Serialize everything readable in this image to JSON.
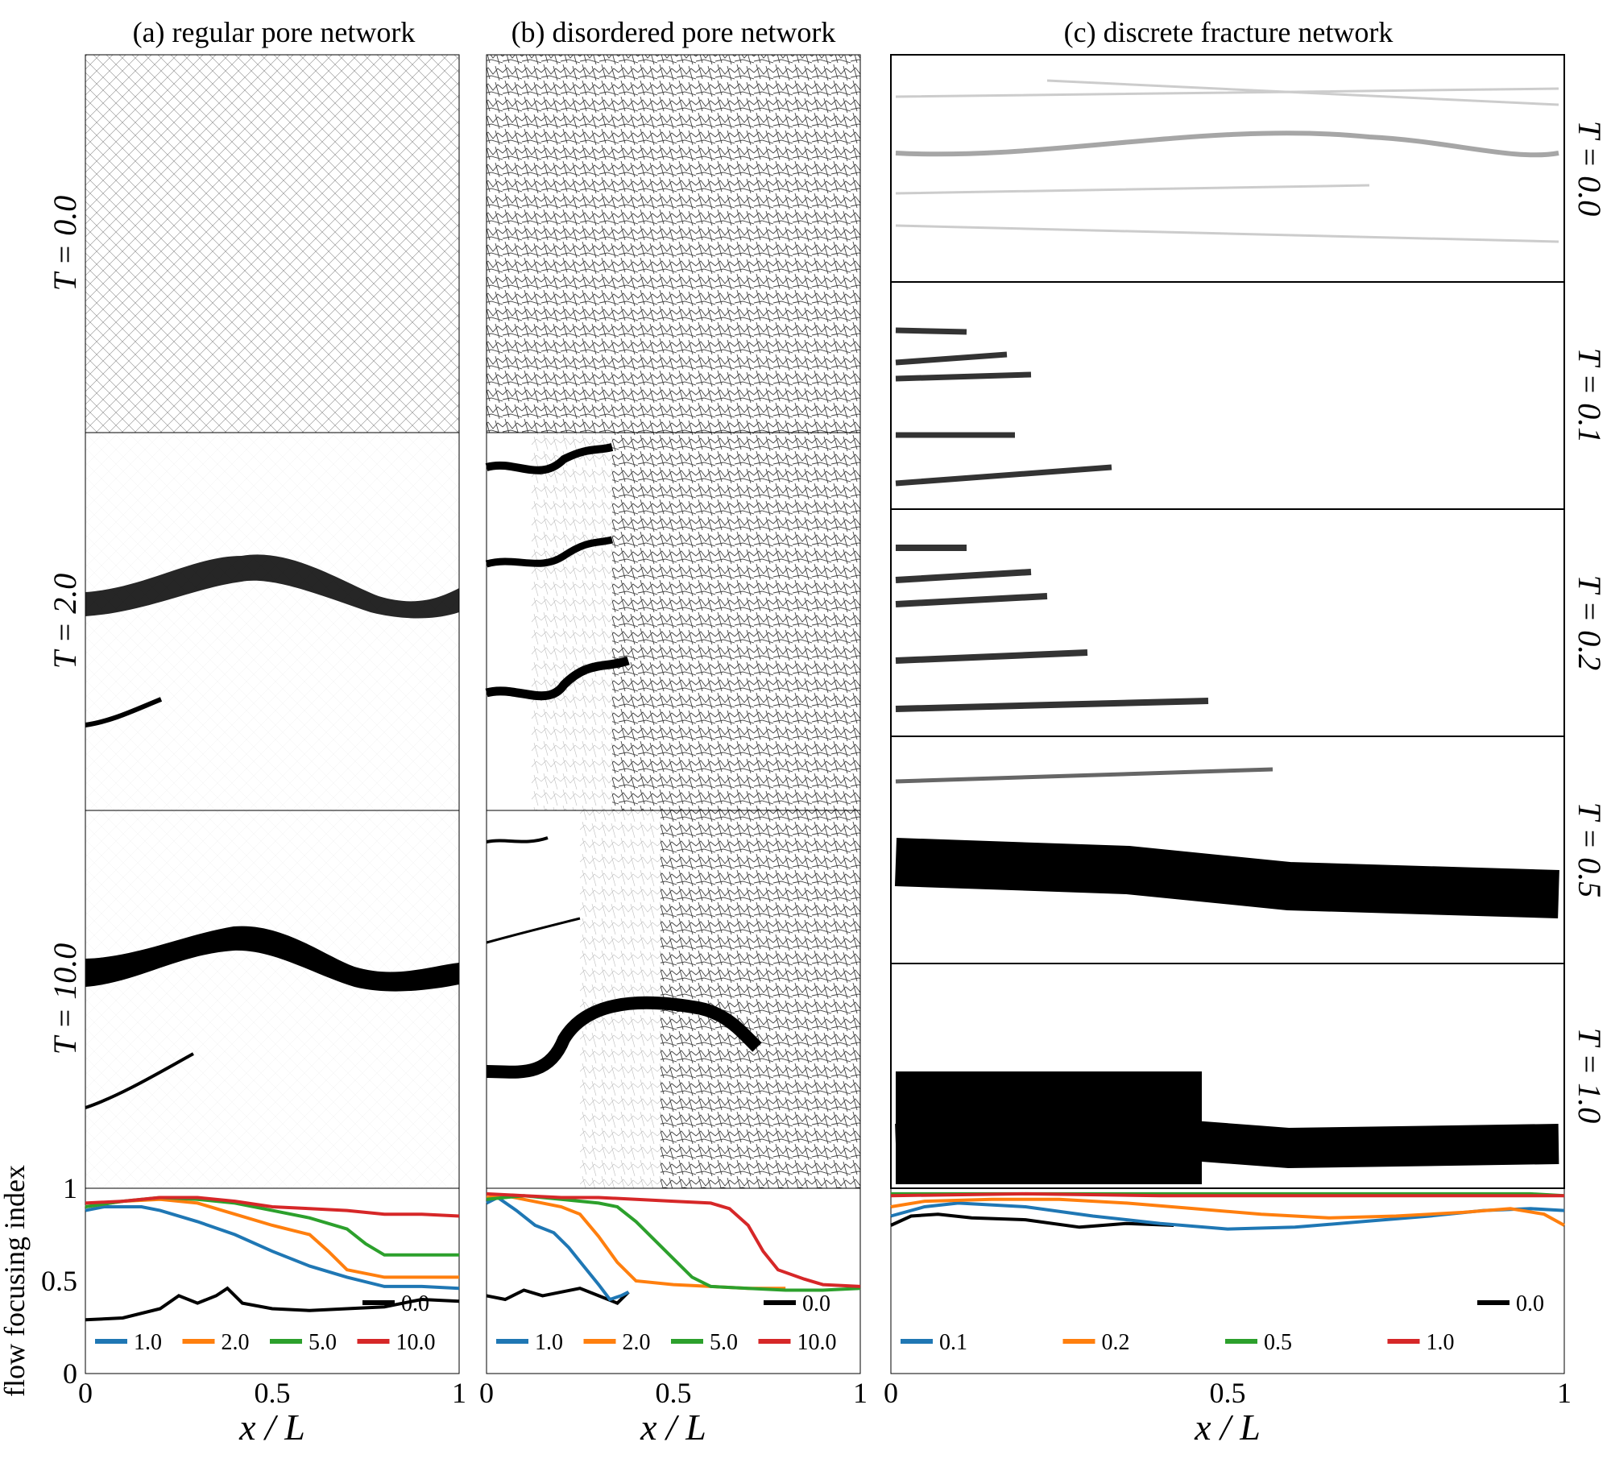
{
  "columns": [
    {
      "title": "(a) regular pore network"
    },
    {
      "title": "(b) disordered pore network"
    },
    {
      "title": "(c) discrete fracture network"
    }
  ],
  "row_labels_ab": [
    "T = 0.0",
    "T = 2.0",
    "T = 10.0"
  ],
  "row_labels_c": [
    "T = 0.0",
    "T = 0.1",
    "T = 0.2",
    "T = 0.5",
    "T = 1.0"
  ],
  "colors": {
    "c0": "#000000",
    "c1": "#1f77b4",
    "c2": "#ff7f0e",
    "c3": "#2ca02c",
    "c4": "#d62728"
  },
  "chart_data": [
    {
      "type": "line",
      "panel": "a",
      "xlabel": "x / L",
      "ylabel": "flow focusing index",
      "xlim": [
        0,
        1
      ],
      "ylim": [
        0,
        1
      ],
      "xticks": [
        "0",
        "0.5",
        "1"
      ],
      "yticks": [
        "0",
        "0.5",
        "1"
      ],
      "series": [
        {
          "name": "0.0",
          "x": [
            0,
            0.1,
            0.2,
            0.25,
            0.3,
            0.35,
            0.38,
            0.42,
            0.5,
            0.6,
            0.7,
            0.8,
            0.9,
            1.0
          ],
          "y": [
            0.29,
            0.3,
            0.35,
            0.42,
            0.38,
            0.42,
            0.46,
            0.38,
            0.35,
            0.34,
            0.35,
            0.36,
            0.4,
            0.39
          ]
        },
        {
          "name": "1.0",
          "x": [
            0,
            0.05,
            0.15,
            0.2,
            0.3,
            0.4,
            0.5,
            0.6,
            0.7,
            0.8,
            0.9,
            1.0
          ],
          "y": [
            0.88,
            0.9,
            0.9,
            0.88,
            0.82,
            0.75,
            0.66,
            0.58,
            0.52,
            0.47,
            0.47,
            0.46
          ]
        },
        {
          "name": "2.0",
          "x": [
            0,
            0.1,
            0.2,
            0.3,
            0.4,
            0.5,
            0.6,
            0.65,
            0.7,
            0.8,
            0.9,
            1.0
          ],
          "y": [
            0.9,
            0.93,
            0.94,
            0.92,
            0.86,
            0.8,
            0.75,
            0.66,
            0.56,
            0.52,
            0.52,
            0.52
          ]
        },
        {
          "name": "5.0",
          "x": [
            0,
            0.1,
            0.2,
            0.3,
            0.4,
            0.5,
            0.6,
            0.7,
            0.75,
            0.8,
            0.9,
            1.0
          ],
          "y": [
            0.9,
            0.93,
            0.95,
            0.94,
            0.92,
            0.88,
            0.84,
            0.78,
            0.7,
            0.64,
            0.64,
            0.64
          ]
        },
        {
          "name": "10.0",
          "x": [
            0,
            0.1,
            0.2,
            0.3,
            0.4,
            0.5,
            0.6,
            0.7,
            0.8,
            0.9,
            1.0
          ],
          "y": [
            0.92,
            0.93,
            0.95,
            0.95,
            0.93,
            0.9,
            0.89,
            0.88,
            0.86,
            0.86,
            0.85
          ]
        }
      ]
    },
    {
      "type": "line",
      "panel": "b",
      "xlabel": "x / L",
      "xlim": [
        0,
        1
      ],
      "ylim": [
        0,
        1
      ],
      "xticks": [
        "0",
        "0.5",
        "1"
      ],
      "series": [
        {
          "name": "0.0",
          "x": [
            0,
            0.05,
            0.1,
            0.15,
            0.2,
            0.25,
            0.3,
            0.35,
            0.38
          ],
          "y": [
            0.42,
            0.4,
            0.45,
            0.42,
            0.44,
            0.46,
            0.42,
            0.38,
            0.44
          ]
        },
        {
          "name": "1.0",
          "x": [
            0,
            0.03,
            0.08,
            0.13,
            0.18,
            0.22,
            0.26,
            0.3,
            0.33,
            0.36,
            0.38
          ],
          "y": [
            0.92,
            0.95,
            0.88,
            0.8,
            0.76,
            0.68,
            0.58,
            0.48,
            0.4,
            0.42,
            0.44
          ]
        },
        {
          "name": "2.0",
          "x": [
            0,
            0.05,
            0.1,
            0.15,
            0.2,
            0.25,
            0.3,
            0.35,
            0.4,
            0.5,
            0.6,
            0.7,
            0.8
          ],
          "y": [
            0.95,
            0.96,
            0.94,
            0.92,
            0.9,
            0.86,
            0.74,
            0.6,
            0.5,
            0.48,
            0.47,
            0.46,
            0.46
          ]
        },
        {
          "name": "5.0",
          "x": [
            0,
            0.1,
            0.2,
            0.3,
            0.35,
            0.4,
            0.45,
            0.5,
            0.55,
            0.6,
            0.7,
            0.8,
            0.9,
            1.0
          ],
          "y": [
            0.94,
            0.96,
            0.94,
            0.92,
            0.9,
            0.82,
            0.72,
            0.62,
            0.52,
            0.47,
            0.46,
            0.45,
            0.45,
            0.46
          ]
        },
        {
          "name": "10.0",
          "x": [
            0,
            0.1,
            0.2,
            0.3,
            0.4,
            0.5,
            0.6,
            0.65,
            0.7,
            0.74,
            0.78,
            0.85,
            0.9,
            1.0
          ],
          "y": [
            0.97,
            0.96,
            0.95,
            0.95,
            0.94,
            0.93,
            0.92,
            0.89,
            0.8,
            0.66,
            0.56,
            0.51,
            0.48,
            0.47
          ]
        }
      ]
    },
    {
      "type": "line",
      "panel": "c",
      "xlabel": "x / L",
      "xlim": [
        0,
        1
      ],
      "ylim": [
        0,
        1
      ],
      "xticks": [
        "0",
        "0.5",
        "1"
      ],
      "series": [
        {
          "name": "0.0",
          "x": [
            0,
            0.03,
            0.07,
            0.12,
            0.2,
            0.28,
            0.35,
            0.42
          ],
          "y": [
            0.8,
            0.85,
            0.86,
            0.84,
            0.83,
            0.79,
            0.81,
            0.8
          ]
        },
        {
          "name": "0.1",
          "x": [
            0,
            0.05,
            0.1,
            0.2,
            0.3,
            0.4,
            0.5,
            0.6,
            0.7,
            0.8,
            0.88,
            0.95,
            1.0
          ],
          "y": [
            0.85,
            0.9,
            0.92,
            0.9,
            0.85,
            0.81,
            0.78,
            0.79,
            0.82,
            0.85,
            0.88,
            0.89,
            0.88
          ]
        },
        {
          "name": "0.2",
          "x": [
            0,
            0.05,
            0.15,
            0.25,
            0.35,
            0.45,
            0.55,
            0.65,
            0.75,
            0.85,
            0.92,
            0.97,
            1.0
          ],
          "y": [
            0.9,
            0.93,
            0.94,
            0.94,
            0.92,
            0.89,
            0.86,
            0.84,
            0.85,
            0.87,
            0.89,
            0.86,
            0.8
          ]
        },
        {
          "name": "0.5",
          "x": [
            0,
            0.2,
            0.4,
            0.6,
            0.8,
            0.95,
            1.0
          ],
          "y": [
            0.97,
            0.97,
            0.97,
            0.97,
            0.97,
            0.97,
            0.96
          ]
        },
        {
          "name": "1.0",
          "x": [
            0,
            0.2,
            0.4,
            0.6,
            0.8,
            1.0
          ],
          "y": [
            0.96,
            0.97,
            0.96,
            0.96,
            0.96,
            0.96
          ]
        }
      ]
    }
  ],
  "legend_ab": [
    "0.0",
    "1.0",
    "2.0",
    "5.0",
    "10.0"
  ],
  "legend_c": [
    "0.0",
    "0.1",
    "0.2",
    "0.5",
    "1.0"
  ]
}
